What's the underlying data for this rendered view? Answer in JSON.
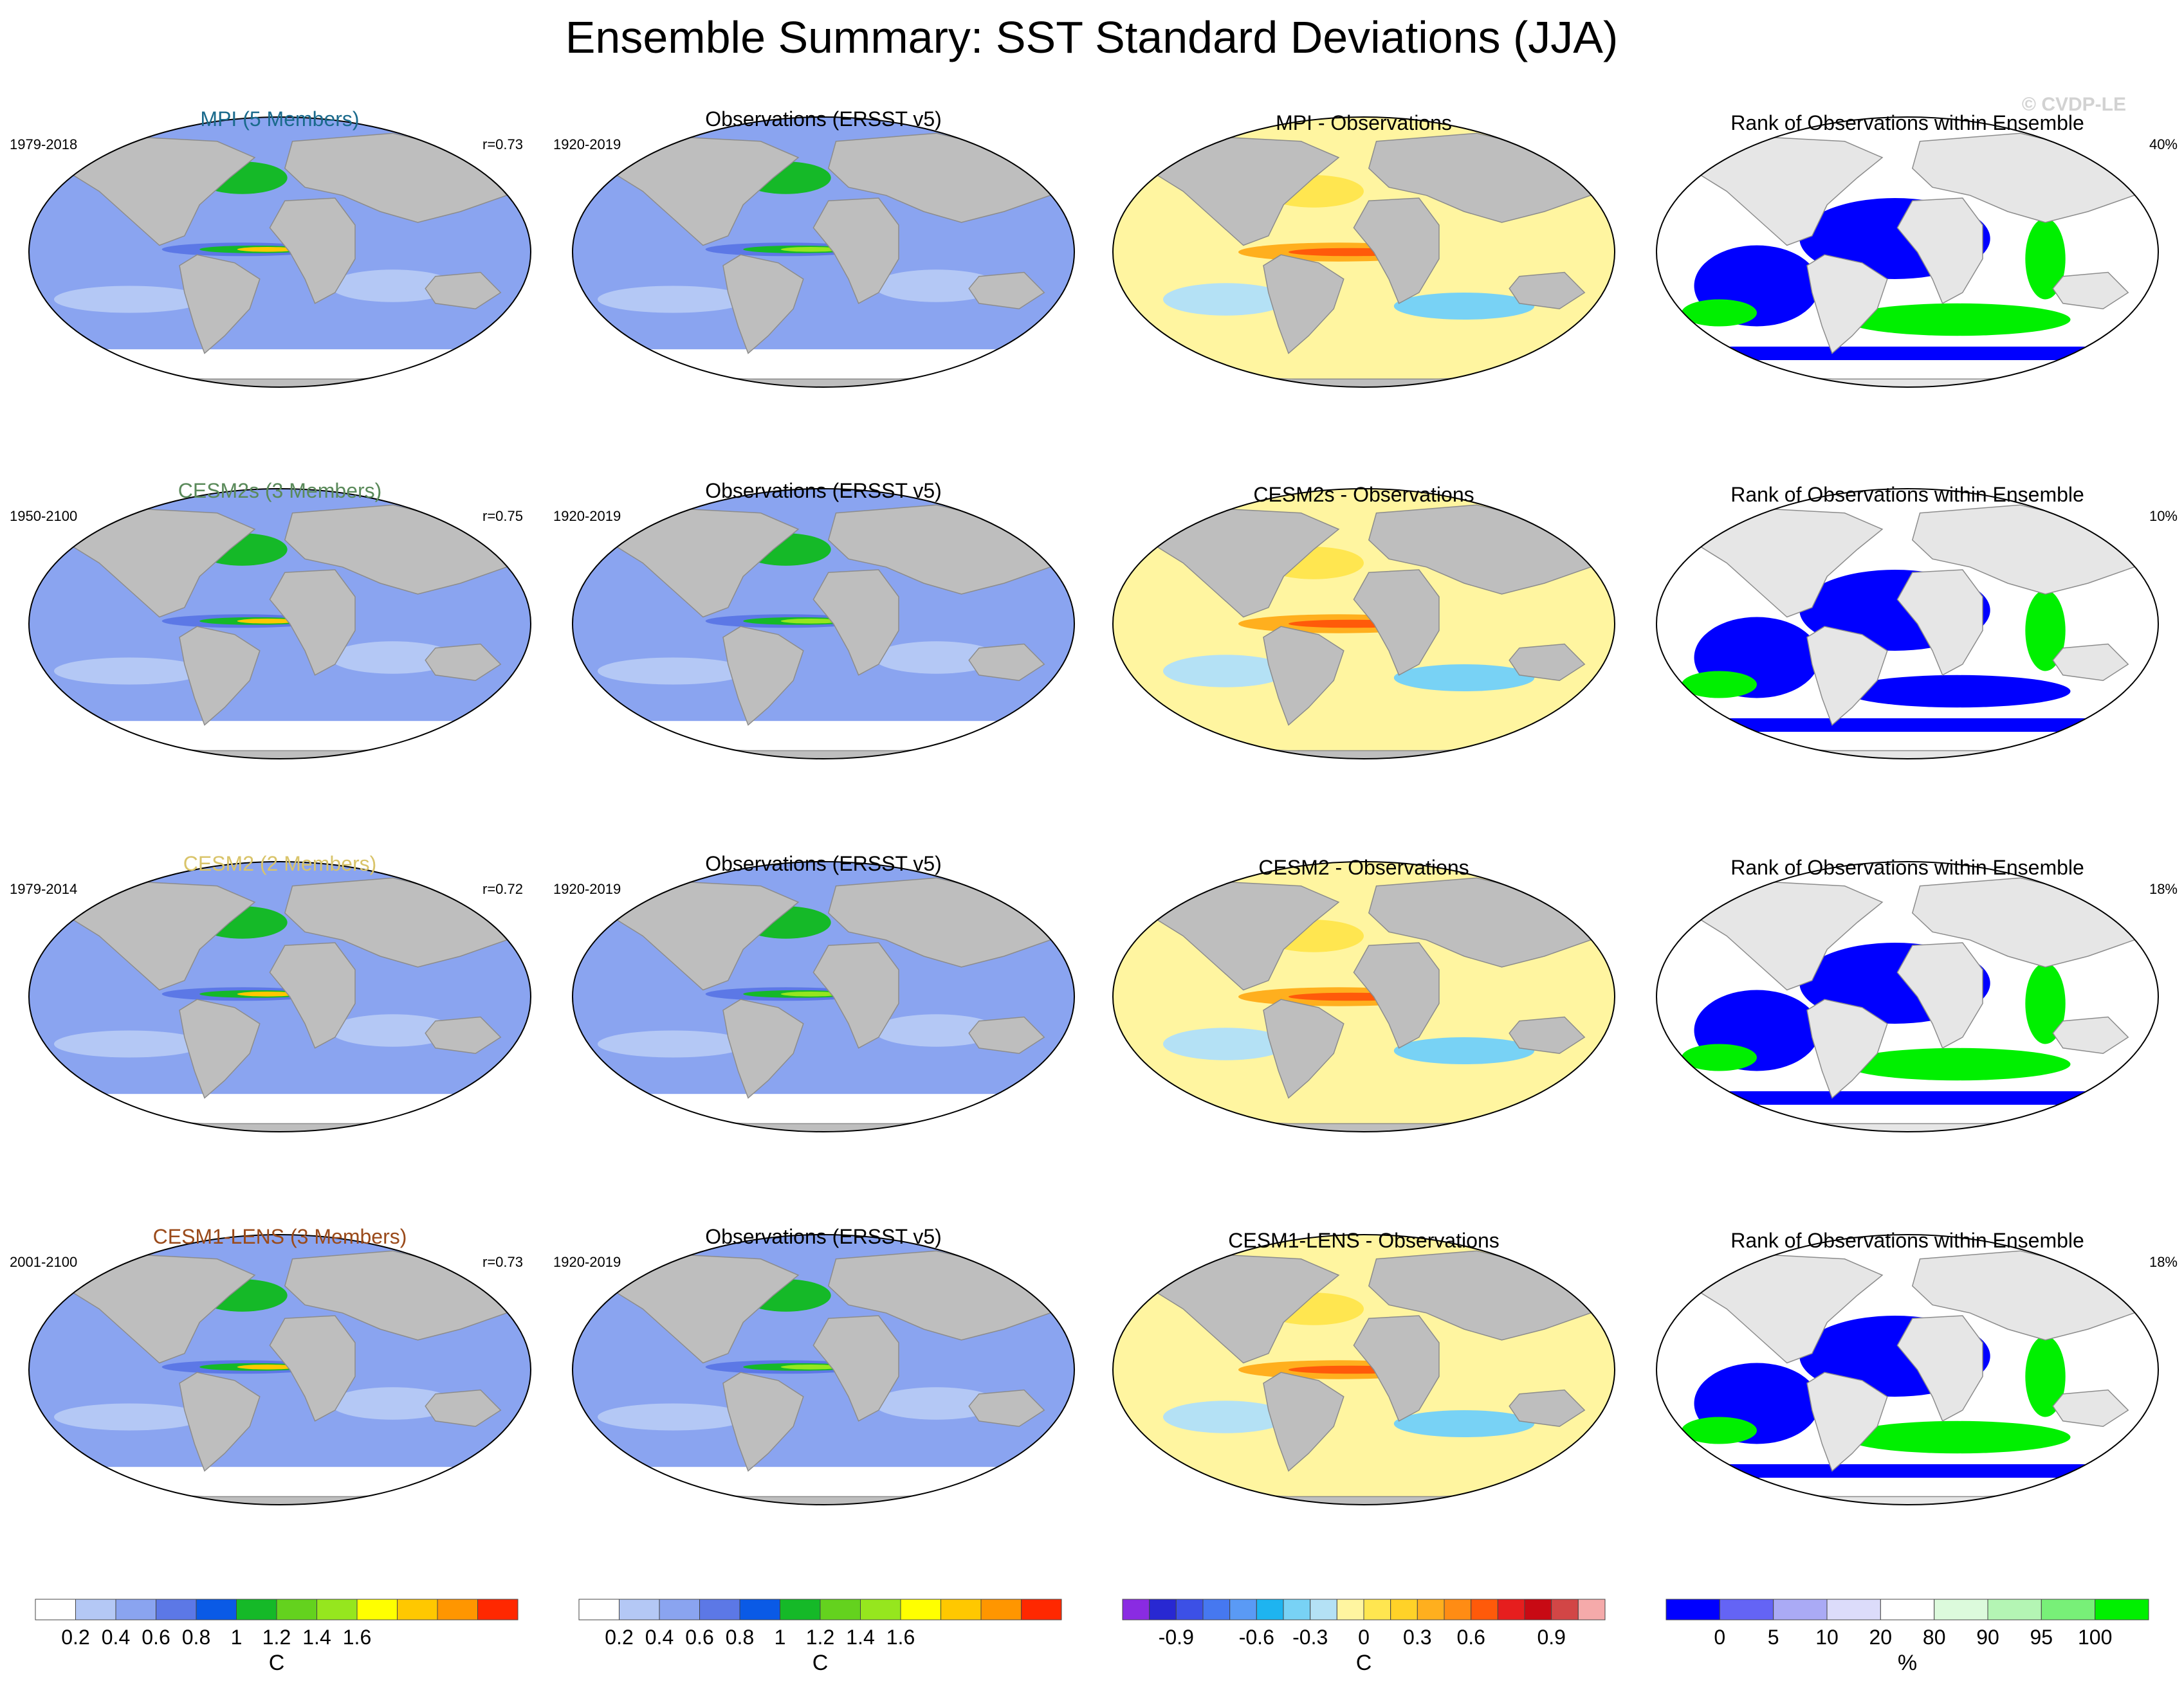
{
  "title": "Ensemble Summary: SST Standard Deviations (JJA)",
  "watermark": "© CVDP-LE",
  "chart_data": {
    "type": "heatmap",
    "title": "Ensemble Summary: SST Standard Deviations (JJA)",
    "projection": "robinson",
    "rows": [
      {
        "model": "MPI (5 Members)",
        "model_color": "#1a6a8c",
        "model_period": "1979-2018",
        "pattern_corr": "r=0.73",
        "obs_title": "Observations (ERSST v5)",
        "obs_period": "1920-2019",
        "diff_title": "MPI - Observations",
        "rank_title": "Rank of Observations within Ensemble",
        "rank_pct": "40%"
      },
      {
        "model": "CESM2s (3 Members)",
        "model_color": "#5a8a5a",
        "model_period": "1950-2100",
        "pattern_corr": "r=0.75",
        "obs_title": "Observations (ERSST v5)",
        "obs_period": "1920-2019",
        "diff_title": "CESM2s - Observations",
        "rank_title": "Rank of Observations within Ensemble",
        "rank_pct": "10%"
      },
      {
        "model": "CESM2 (2 Members)",
        "model_color": "#d9c46a",
        "model_period": "1979-2014",
        "pattern_corr": "r=0.72",
        "obs_title": "Observations (ERSST v5)",
        "obs_period": "1920-2019",
        "diff_title": "CESM2 - Observations",
        "rank_title": "Rank of Observations within Ensemble",
        "rank_pct": "18%"
      },
      {
        "model": "CESM1-LENS (3 Members)",
        "model_color": "#9a4a1a",
        "model_period": "2001-2100",
        "pattern_corr": "r=0.73",
        "obs_title": "Observations (ERSST v5)",
        "obs_period": "1920-2019",
        "diff_title": "CESM1-LENS - Observations",
        "rank_title": "Rank of Observations within Ensemble",
        "rank_pct": "18%"
      }
    ],
    "colorbars": [
      {
        "id": "stddev-model",
        "unit": "C",
        "colors": [
          "#ffffff",
          "#b4c8f5",
          "#8aa4f0",
          "#5c78e6",
          "#0a5ae6",
          "#15b928",
          "#64d21e",
          "#96e61e",
          "#ffff00",
          "#ffc800",
          "#ff9600",
          "#ff2800"
        ],
        "labels": [
          "0.2",
          "0.4",
          "0.6",
          "0.8",
          "1",
          "1.2",
          "1.4",
          "1.6"
        ],
        "label_after_box": [
          1,
          2,
          3,
          4,
          5,
          6,
          7,
          8
        ]
      },
      {
        "id": "stddev-obs",
        "unit": "C",
        "colors": [
          "#ffffff",
          "#b4c8f5",
          "#8aa4f0",
          "#5c78e6",
          "#0a5ae6",
          "#15b928",
          "#64d21e",
          "#96e61e",
          "#ffff00",
          "#ffc800",
          "#ff9600",
          "#ff2800"
        ],
        "labels": [
          "0.2",
          "0.4",
          "0.6",
          "0.8",
          "1",
          "1.2",
          "1.4",
          "1.6"
        ],
        "label_after_box": [
          1,
          2,
          3,
          4,
          5,
          6,
          7,
          8
        ]
      },
      {
        "id": "difference",
        "unit": "C",
        "colors": [
          "#8a2be2",
          "#2828d2",
          "#3c50e6",
          "#4678f0",
          "#5a9af5",
          "#1eb4f0",
          "#78d2f5",
          "#b4e1f5",
          "#fff5a0",
          "#ffe650",
          "#ffd228",
          "#ffaf1e",
          "#ff8c14",
          "#ff5a0a",
          "#e61e1e",
          "#c80a14",
          "#d24646",
          "#f5aaaa"
        ],
        "labels": [
          "-0.9",
          "-0.6",
          "-0.3",
          "0",
          "0.3",
          "0.6",
          "0.9"
        ],
        "label_after_box": [
          2,
          5,
          7,
          9,
          11,
          13,
          16
        ]
      },
      {
        "id": "rank",
        "unit": "%",
        "colors": [
          "#0000ff",
          "#6464f5",
          "#aaaaf5",
          "#dcdcfa",
          "#ffffff",
          "#dcfadc",
          "#b4f5b4",
          "#78f078",
          "#00f000"
        ],
        "labels": [
          "0",
          "5",
          "10",
          "20",
          "80",
          "90",
          "95",
          "100"
        ],
        "label_after_box": [
          1,
          2,
          3,
          4,
          5,
          6,
          7,
          8
        ]
      }
    ]
  }
}
